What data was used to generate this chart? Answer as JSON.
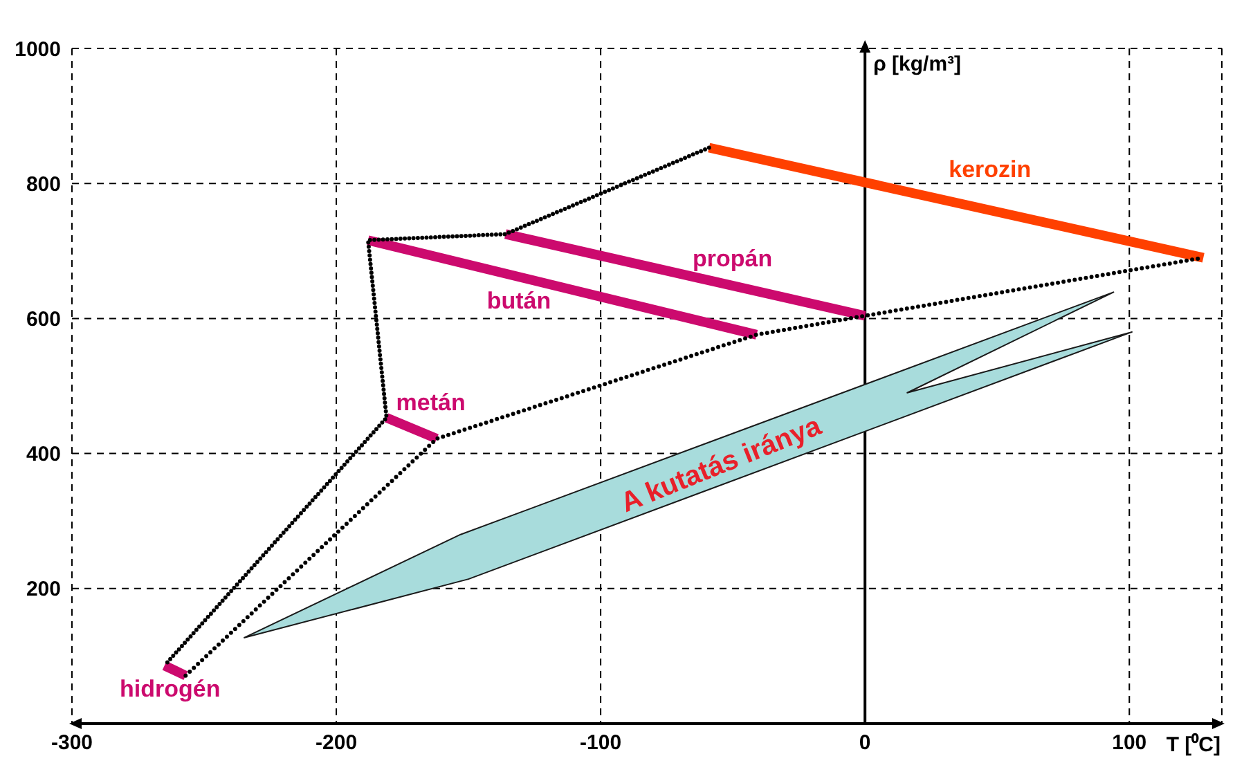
{
  "chart_data": {
    "type": "line",
    "xlabel": "T [⁰C]",
    "ylabel": "ρ [kg/m³]",
    "xlim": [
      -300,
      135
    ],
    "ylim": [
      0,
      1000
    ],
    "xticks": [
      -300,
      -200,
      -100,
      0,
      100
    ],
    "yticks": [
      200,
      400,
      600,
      800,
      1000
    ],
    "grid": true,
    "ref_lines": [
      {
        "axis": "x",
        "value": 0,
        "color": "#000000"
      }
    ],
    "series": [
      {
        "type": "area",
        "name": "A kutatás iránya",
        "color": "#a8dcdc",
        "x": [
          -235,
          -153,
          94,
          16,
          101,
          -150,
          -235
        ],
        "values": [
          127,
          280,
          639,
          490,
          580,
          214,
          127
        ]
      },
      {
        "color": "#000000",
        "line_style": "dotted",
        "x": [
          -59,
          -136,
          -188,
          -181,
          -265
        ],
        "values": [
          853,
          725,
          716,
          453,
          86
        ]
      },
      {
        "color": "#000000",
        "line_style": "dotted",
        "x": [
          -257,
          -162,
          -41,
          0,
          128
        ],
        "values": [
          71,
          422,
          576,
          604,
          690
        ]
      },
      {
        "name": "kerozin",
        "color": "#ff4000",
        "x": [
          -59,
          128
        ],
        "values": [
          853,
          690
        ]
      },
      {
        "name": "propán",
        "color": "#cc0a6e",
        "x": [
          -136,
          0
        ],
        "values": [
          725,
          604
        ]
      },
      {
        "name": "bután",
        "color": "#cc0a6e",
        "x": [
          -188,
          -41
        ],
        "values": [
          716,
          576
        ]
      },
      {
        "name": "metán",
        "color": "#cc0a6e",
        "x": [
          -181,
          -162
        ],
        "values": [
          453,
          422
        ]
      },
      {
        "name": "hidrogén",
        "color": "#cc0a6e",
        "x": [
          -265,
          -257
        ],
        "values": [
          86,
          71
        ]
      }
    ]
  }
}
